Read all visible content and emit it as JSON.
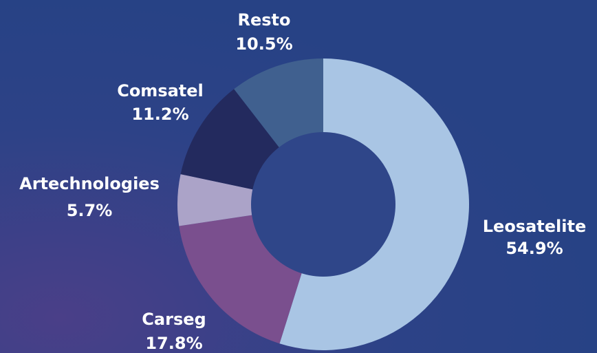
{
  "chart_data": {
    "type": "donut",
    "categories": [
      "Leosatelite",
      "Carseg",
      "Artechnologies",
      "Comsatel",
      "Resto"
    ],
    "values": [
      54.9,
      17.8,
      5.7,
      11.2,
      10.5
    ],
    "value_labels": [
      "54.9%",
      "17.8%",
      "5.7%",
      "11.2%",
      "10.5%"
    ],
    "colors": [
      "#a9c5e4",
      "#7a4f8e",
      "#aba3c8",
      "#232a5e",
      "#40608f"
    ]
  }
}
